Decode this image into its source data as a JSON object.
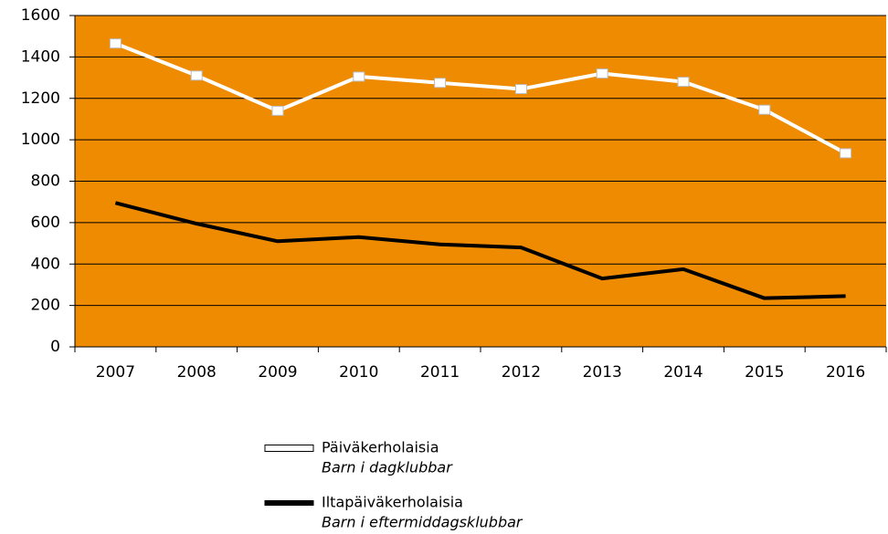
{
  "chart_data": {
    "type": "line",
    "categories": [
      "2007",
      "2008",
      "2009",
      "2010",
      "2011",
      "2012",
      "2013",
      "2014",
      "2015",
      "2016"
    ],
    "series": [
      {
        "name": "Päiväkerholaisia",
        "translation": "Barn i dagklubbar",
        "color": "#ffffff",
        "marker": "square",
        "values": [
          1465,
          1310,
          1140,
          1305,
          1275,
          1245,
          1320,
          1280,
          1145,
          935
        ]
      },
      {
        "name": "Iltapäiväkerholaisia",
        "translation": "Barn i eftermiddagsklubbar",
        "color": "#000000",
        "marker": "none",
        "values": [
          695,
          595,
          510,
          530,
          495,
          480,
          330,
          375,
          235,
          245
        ]
      }
    ],
    "ylim": [
      0,
      1600
    ],
    "yticks": [
      0,
      200,
      400,
      600,
      800,
      1000,
      1200,
      1400,
      1600
    ],
    "grid": true,
    "background": "#ee8b00",
    "legend": "bottom"
  }
}
